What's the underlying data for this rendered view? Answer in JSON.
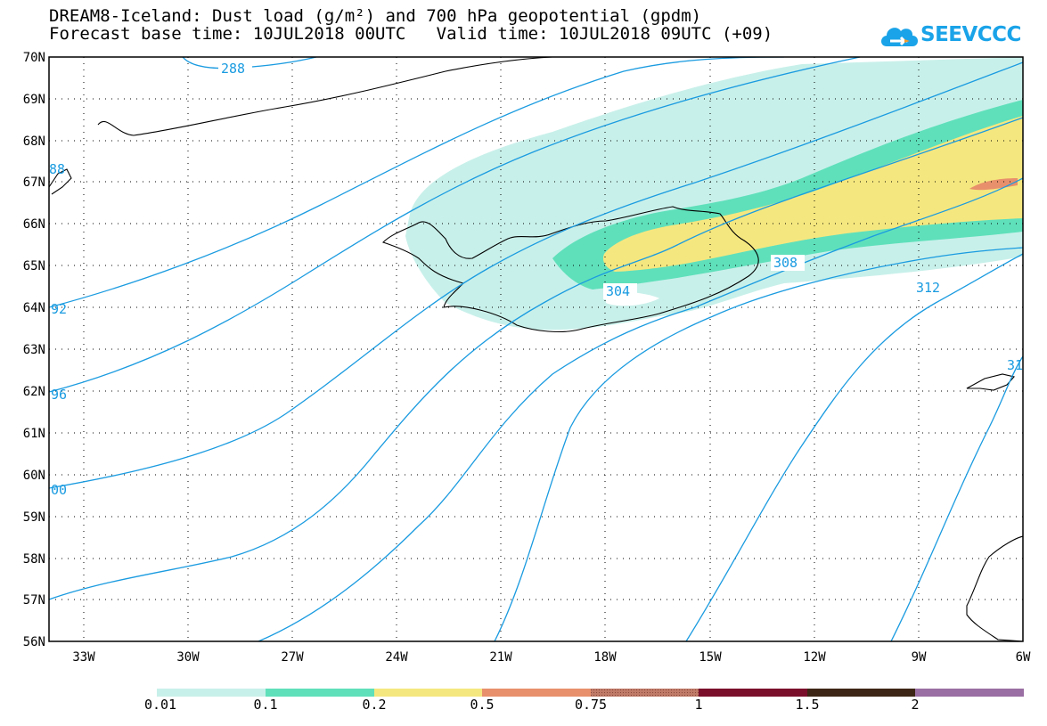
{
  "title": {
    "line1": "DREAM8-Iceland: Dust load (g/m²) and 700 hPa geopotential (gpdm)",
    "line2": "Forecast base time: 10JUL2018 00UTC   Valid time: 10JUL2018 09UTC (+09)"
  },
  "logo": {
    "text": "SEEVCCC"
  },
  "axes": {
    "lat_labels": [
      "70N",
      "69N",
      "68N",
      "67N",
      "66N",
      "65N",
      "64N",
      "63N",
      "62N",
      "61N",
      "60N",
      "59N",
      "58N",
      "57N",
      "56N"
    ],
    "lon_labels": [
      "33W",
      "30W",
      "27W",
      "24W",
      "21W",
      "18W",
      "15W",
      "12W",
      "9W",
      "6W"
    ]
  },
  "contour_labels": [
    "288",
    "92",
    "96",
    "00",
    "304",
    "308",
    "312",
    "31",
    "88"
  ],
  "colorbar": {
    "labels": [
      "0.01",
      "0.1",
      "0.2",
      "0.5",
      "0.75",
      "1",
      "1.5",
      "2"
    ],
    "colors": [
      "#c8f0ea",
      "#5fe0bb",
      "#f5e77f",
      "#e8906b",
      "#b46a5a",
      "#7a0f2b",
      "#3d2615",
      "#9a6fa3"
    ]
  }
}
